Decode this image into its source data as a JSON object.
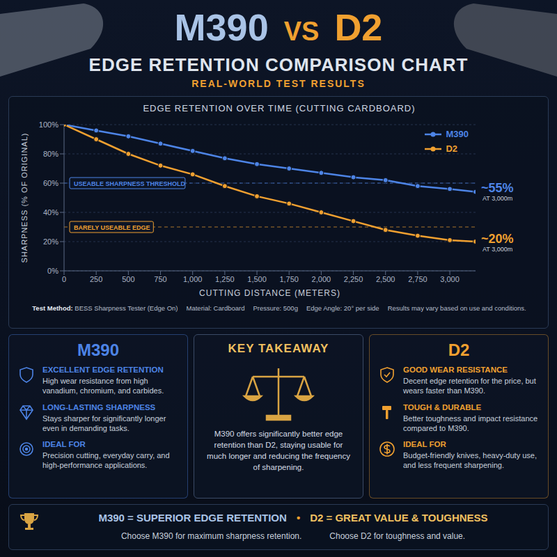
{
  "header": {
    "left": "M390",
    "vs": "VS",
    "right": "D2",
    "title": "EDGE RETENTION COMPARISON CHART",
    "subtitle": "REAL-WORLD TEST RESULTS"
  },
  "chart_data": {
    "type": "line",
    "title": "EDGE RETENTION OVER TIME (CUTTING CARDBOARD)",
    "x_label": "CUTTING DISTANCE (METERS)",
    "y_label": "SHARPNESS (% OF ORIGINAL)",
    "x": [
      0,
      250,
      500,
      750,
      1000,
      1250,
      1500,
      1750,
      2000,
      2250,
      2500,
      2750,
      3000,
      3200
    ],
    "series": [
      {
        "name": "M390",
        "color": "#4d84e6",
        "marker": "circle",
        "line_style": "solid",
        "values": [
          100,
          96,
          92,
          87,
          82,
          77,
          73,
          70,
          67,
          64,
          62,
          58,
          56,
          54
        ]
      },
      {
        "name": "D2",
        "color": "#f0a030",
        "marker": "circle",
        "line_style": "solid",
        "values": [
          100,
          90,
          80,
          72,
          66,
          58,
          51,
          46,
          40,
          34,
          28,
          24,
          21,
          20
        ]
      }
    ],
    "xlim": [
      0,
      3200
    ],
    "xticks": [
      0,
      250,
      500,
      750,
      {
        "value": 1000,
        "label": "1,000"
      },
      {
        "value": 1250,
        "label": "1,250"
      },
      {
        "value": 1500,
        "label": "1,500"
      },
      {
        "value": 1750,
        "label": "1,750"
      },
      {
        "value": 2000,
        "label": "2,000"
      },
      {
        "value": 2250,
        "label": "2,250"
      },
      {
        "value": 2500,
        "label": "2,500"
      },
      {
        "value": 2750,
        "label": "2,750"
      },
      {
        "value": 3000,
        "label": "3,000"
      }
    ],
    "ylim": [
      0,
      100
    ],
    "yticks": [
      {
        "value": 0,
        "label": "0%"
      },
      {
        "value": 20,
        "label": "20%"
      },
      {
        "value": 40,
        "label": "40%"
      },
      {
        "value": 60,
        "label": "60%"
      },
      {
        "value": 80,
        "label": "80%"
      },
      {
        "value": 100,
        "label": "100%"
      }
    ],
    "grid": true,
    "legend": "upper right",
    "reference_lines": [
      {
        "value": 60,
        "label": "USEABLE SHARPNESS THRESHOLD",
        "color": "#4d84e6"
      },
      {
        "value": 30,
        "label": "BARELY USEABLE EDGE",
        "color": "#f0a030"
      }
    ],
    "end_labels": [
      {
        "series": "M390",
        "value": 55,
        "label": "~55%",
        "sublabel": "AT 3,000m"
      },
      {
        "series": "D2",
        "value": 20,
        "label": "~20%",
        "sublabel": "AT 3,000m"
      }
    ]
  },
  "test_info": {
    "label": "Test Method:",
    "text": "BESS Sharpness Tester (Edge On)",
    "items": [
      "Material: Cardboard",
      "Pressure: 500g",
      "Edge Angle: 20° per side",
      "Results may vary based on use and conditions."
    ]
  },
  "panels": [
    {
      "title": "M390",
      "color": "#4d84e6",
      "items": [
        {
          "heading": "EXCELLENT EDGE RETENTION",
          "text": "High wear resistance from high vanadium, chromium, and carbides."
        },
        {
          "heading": "LONG-LASTING SHARPNESS",
          "text": "Stays sharper for significantly longer even in demanding tasks."
        },
        {
          "heading": "IDEAL FOR",
          "text": "Precision cutting, everyday carry, and high-performance applications."
        }
      ]
    },
    {
      "title": "D2",
      "color": "#f0a030",
      "items": [
        {
          "heading": "GOOD WEAR RESISTANCE",
          "text": "Decent edge retention for the price, but wears faster than M390."
        },
        {
          "heading": "TOUGH & DURABLE",
          "text": "Better toughness and impact resistance compared to M390."
        },
        {
          "heading": "IDEAL FOR",
          "text": "Budget-friendly knives, heavy-duty use, and less frequent sharpening."
        }
      ]
    }
  ],
  "takeaway": {
    "title": "KEY TAKEAWAY",
    "text": "M390 offers significantly better edge retention than D2, staying usable for much longer and reducing the frequency of sharpening."
  },
  "footer": {
    "left": "M390 = SUPERIOR EDGE RETENTION",
    "separator": "•",
    "right": "D2 = GREAT VALUE & TOUGHNESS",
    "left_note": "Choose M390 for maximum sharpness retention.",
    "right_note": "Choose D2 for toughness and value."
  }
}
